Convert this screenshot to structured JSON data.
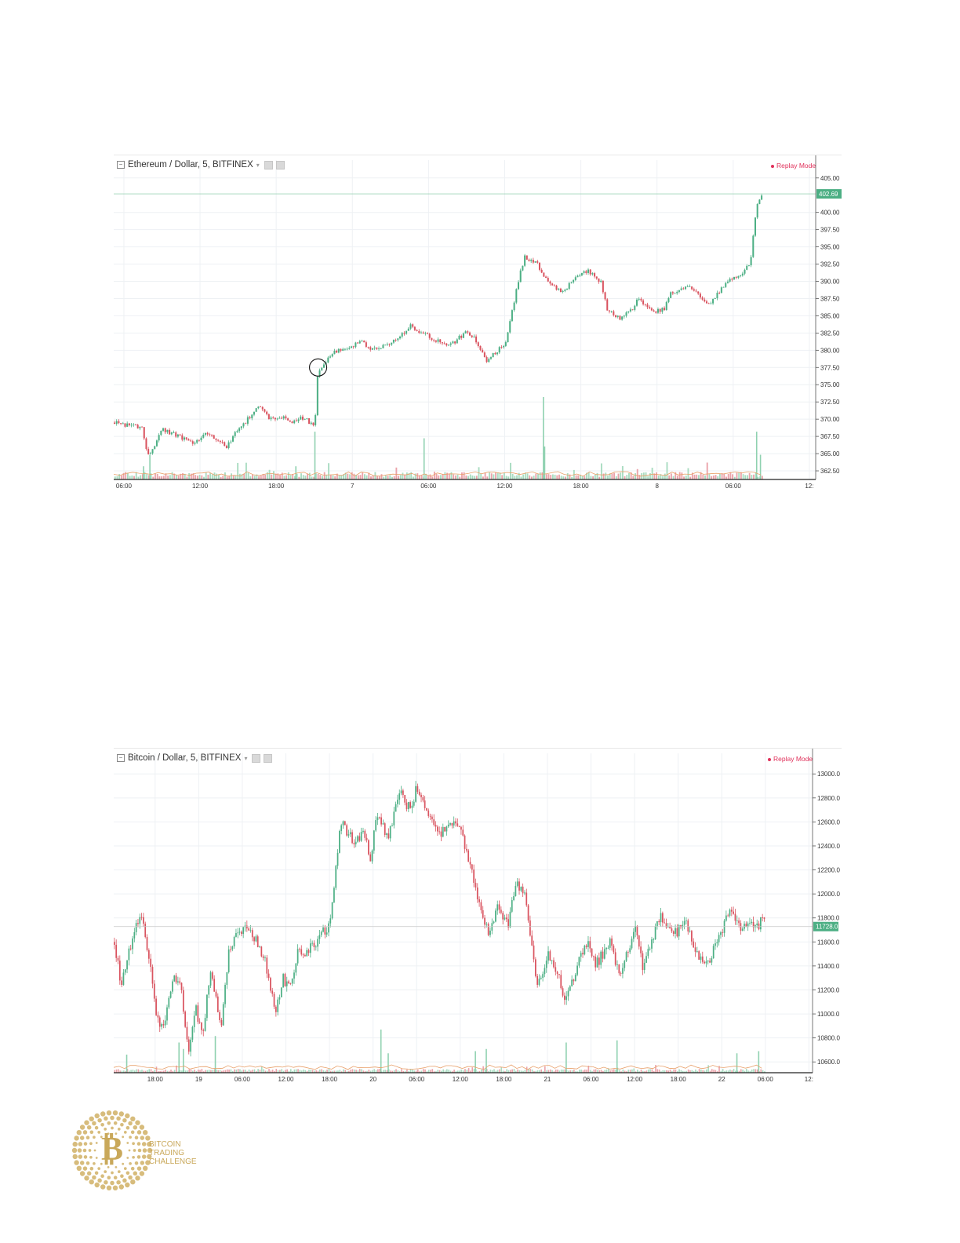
{
  "colors": {
    "up": "#4caf84",
    "down": "#d9535f",
    "price_line_eth": "#7fc8a0",
    "price_line_btc": "#b0b0b0",
    "replay": "#e0305a",
    "gold": "#c9a85a"
  },
  "eth_header": {
    "title": "Ethereum / Dollar, 5, BITFINEX",
    "replay": "Replay Mode"
  },
  "btc_header": {
    "title": "Bitcoin / Dollar, 5, BITFINEX",
    "replay": "Replay Mode"
  },
  "logo": {
    "line1": "BITCOIN",
    "line2": "TRADING",
    "line3": "CHALLENGE",
    "icon": "bitcoin-coin-icon"
  },
  "chart_data": [
    {
      "type": "candlestick",
      "title": "Ethereum / Dollar, 5, BITFINEX",
      "ylim": [
        361.25,
        406.0
      ],
      "y_ticks": [
        "405.00",
        "400.00",
        "397.50",
        "395.00",
        "392.50",
        "390.00",
        "387.50",
        "385.00",
        "382.50",
        "380.00",
        "377.50",
        "375.00",
        "372.50",
        "370.00",
        "367.50",
        "365.00",
        "362.50"
      ],
      "last_price": "402.69",
      "x_ticks": [
        "06:00",
        "12:00",
        "18:00",
        "7",
        "06:00",
        "12:00",
        "18:00",
        "8",
        "06:00",
        "12:"
      ],
      "x_tick_hours": [
        0,
        6,
        12,
        18,
        24,
        30,
        36,
        42,
        48,
        54
      ],
      "x_range_hours": [
        -0.8,
        54.5
      ],
      "last_candle_hour": 50.3,
      "annotation": {
        "type": "circle",
        "at_hour": 15.3,
        "at_price": 377.5
      },
      "path_hours": [
        -0.8,
        0.5,
        1.4,
        1.8,
        3,
        4.3,
        5.5,
        6.5,
        8,
        9,
        9.5,
        10.5,
        11.5,
        12.5,
        13,
        14.2,
        14.6,
        15,
        15.2,
        15.6,
        16.5,
        17.8,
        18.5,
        19.5,
        21.5,
        22.5,
        23.5,
        24.5,
        25.5,
        26.8,
        27.5,
        28.5,
        30,
        31,
        31.5,
        32.5,
        33.5,
        34.5,
        35.5,
        36.5,
        37.5,
        38,
        39,
        40,
        40.5,
        41.5,
        42.5,
        43,
        43.5,
        44.5,
        45,
        46,
        47.5,
        48.5,
        49,
        49.3,
        49.8,
        50.3
      ],
      "path_close": [
        369.5,
        369.0,
        368.8,
        364.5,
        368.5,
        367.5,
        366.5,
        368.0,
        366.0,
        368.8,
        369.5,
        372.0,
        370.0,
        370.3,
        369.5,
        370.3,
        369.2,
        369.5,
        376.5,
        378.0,
        379.8,
        380.3,
        381.5,
        380.0,
        381.5,
        383.5,
        382.5,
        381.5,
        380.5,
        382.5,
        382.0,
        378.5,
        381.0,
        390.0,
        393.5,
        392.5,
        389.5,
        388.5,
        390.5,
        391.5,
        390.0,
        386.0,
        384.5,
        386.0,
        387.5,
        385.5,
        386.0,
        388.5,
        388.5,
        389.5,
        388.5,
        386.5,
        390.0,
        391.0,
        392.0,
        393.0,
        401.0,
        402.7
      ],
      "volume_spikes": [
        {
          "hour": 15.0,
          "vol": 0.58
        },
        {
          "hour": 23.6,
          "vol": 0.5
        },
        {
          "hour": 33.0,
          "vol": 1.0
        },
        {
          "hour": 33.1,
          "vol": 0.4
        },
        {
          "hour": 49.8,
          "vol": 0.58
        },
        {
          "hour": 50.1,
          "vol": 0.3
        },
        {
          "hour": 2.0,
          "vol": 0.3
        },
        {
          "hour": 1.5,
          "vol": 0.16
        },
        {
          "hour": 13.5,
          "vol": 0.16
        }
      ]
    },
    {
      "type": "candlestick",
      "title": "Bitcoin / Dollar, 5, BITFINEX",
      "ylim": [
        10510,
        13080
      ],
      "y_ticks": [
        "13000.0",
        "12800.0",
        "12600.0",
        "12400.0",
        "12200.0",
        "12000.0",
        "11800.0",
        "11600.0",
        "11400.0",
        "11200.0",
        "11000.0",
        "10800.0",
        "10600.0"
      ],
      "last_price": "11728.0",
      "x_ticks": [
        "18:00",
        "19",
        "06:00",
        "12:00",
        "18:00",
        "20",
        "06:00",
        "12:00",
        "18:00",
        "21",
        "06:00",
        "12:00",
        "18:00",
        "22",
        "06:00",
        "12:"
      ],
      "x_tick_hours": [
        0,
        6,
        12,
        18,
        24,
        30,
        36,
        42,
        48,
        54,
        60,
        66,
        72,
        78,
        84,
        90
      ],
      "x_range_hours": [
        -5.7,
        90.5
      ],
      "last_candle_hour": 84.0,
      "path_hours": [
        -5.7,
        -4.8,
        -3,
        -2,
        -1,
        0,
        1,
        2.5,
        3.5,
        4.5,
        5.5,
        6.5,
        7.5,
        9,
        10,
        11,
        12.3,
        13.5,
        15,
        16.5,
        17.5,
        18.5,
        19.5,
        21.5,
        22.5,
        24,
        25.5,
        26.5,
        27.5,
        28.5,
        29.5,
        30.5,
        32,
        33.5,
        35,
        36,
        37.5,
        39,
        40.5,
        41.5,
        43,
        45,
        46,
        47,
        48.5,
        49.5,
        51,
        52.5,
        54,
        55.5,
        56.5,
        58,
        59.5,
        60.5,
        62.5,
        64,
        65,
        66,
        67,
        68.5,
        69.5,
        71,
        72,
        73,
        74.5,
        76,
        77.5,
        79,
        80.5,
        81.5,
        82.5,
        83.5,
        84
      ],
      "path_close": [
        11600,
        11250,
        11680,
        11800,
        11500,
        11000,
        10850,
        11300,
        11200,
        10650,
        11050,
        10800,
        11400,
        10900,
        11500,
        11650,
        11750,
        11650,
        11450,
        11000,
        11300,
        11200,
        11500,
        11550,
        11650,
        11750,
        12600,
        12500,
        12400,
        12550,
        12300,
        12650,
        12450,
        12850,
        12700,
        12900,
        12650,
        12500,
        12550,
        12600,
        12300,
        11800,
        11650,
        11900,
        11750,
        12100,
        11950,
        11200,
        11500,
        11300,
        11100,
        11400,
        11600,
        11400,
        11600,
        11300,
        11550,
        11700,
        11400,
        11650,
        11800,
        11650,
        11700,
        11750,
        11500,
        11400,
        11650,
        11850,
        11700,
        11750,
        11700,
        11780,
        11728
      ],
      "volume_spikes": [
        {
          "hour": 31.0,
          "vol": 1.0
        },
        {
          "hour": 8.2,
          "vol": 0.85
        },
        {
          "hour": 3.2,
          "vol": 0.7
        },
        {
          "hour": 3.8,
          "vol": 0.55
        },
        {
          "hour": 63.5,
          "vol": 0.75
        },
        {
          "hour": 56.5,
          "vol": 0.7
        },
        {
          "hour": 45.5,
          "vol": 0.55
        },
        {
          "hour": 44.0,
          "vol": 0.5
        },
        {
          "hour": 83.0,
          "vol": 0.5
        },
        {
          "hour": 80.0,
          "vol": 0.45
        },
        {
          "hour": 32.0,
          "vol": 0.45
        },
        {
          "hour": -4.0,
          "vol": 0.42
        }
      ]
    }
  ]
}
